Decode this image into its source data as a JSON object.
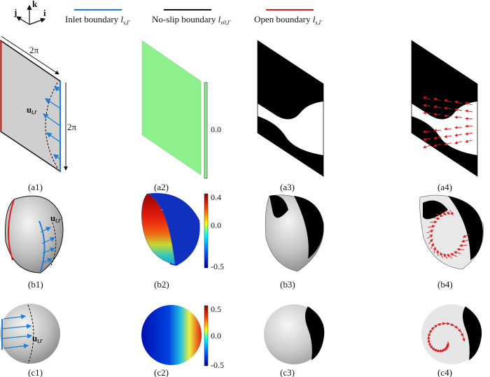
{
  "axes_triad": {
    "k": "k",
    "j": "j",
    "i": "i"
  },
  "legend": [
    {
      "label": "Inlet boundary ",
      "symbol": "l",
      "sub": "v,Γ",
      "color": "#1f7fd6"
    },
    {
      "label": "No-slip boundary ",
      "symbol": "l",
      "sub": "v0,Γ",
      "color": "#111111"
    },
    {
      "label": "Open boundary ",
      "symbol": "l",
      "sub": "s,Γ",
      "color": "#e01b1b"
    }
  ],
  "panels": {
    "a1": {
      "label": "(a1)",
      "dim_top": "2π",
      "dim_side": "2π",
      "vector": "u",
      "vector_sub": "l,Γ"
    },
    "a2": {
      "label": "(a2)",
      "colorbar_ticks": [
        "0.0"
      ],
      "color": "#8cf08c"
    },
    "a3": {
      "label": "(a3)"
    },
    "a4": {
      "label": "(a4)"
    },
    "b1": {
      "label": "(b1)",
      "vector": "u",
      "vector_sub": "l,Γ"
    },
    "b2": {
      "label": "(b2)",
      "colorbar_ticks": [
        "0.4",
        "0.0",
        "-0.5"
      ]
    },
    "b3": {
      "label": "(b3)"
    },
    "b4": {
      "label": "(b4)"
    },
    "c1": {
      "label": "(c1)",
      "vector": "u",
      "vector_sub": "l,Γ"
    },
    "c2": {
      "label": "(c2)",
      "colorbar_ticks": [
        "0.5",
        "0.0",
        "-0.5"
      ]
    },
    "c3": {
      "label": "(c3)"
    },
    "c4": {
      "label": "(c4)"
    }
  },
  "colormap": [
    "#00008f",
    "#0050ff",
    "#00ffff",
    "#ffff00",
    "#ff4000",
    "#800000"
  ]
}
